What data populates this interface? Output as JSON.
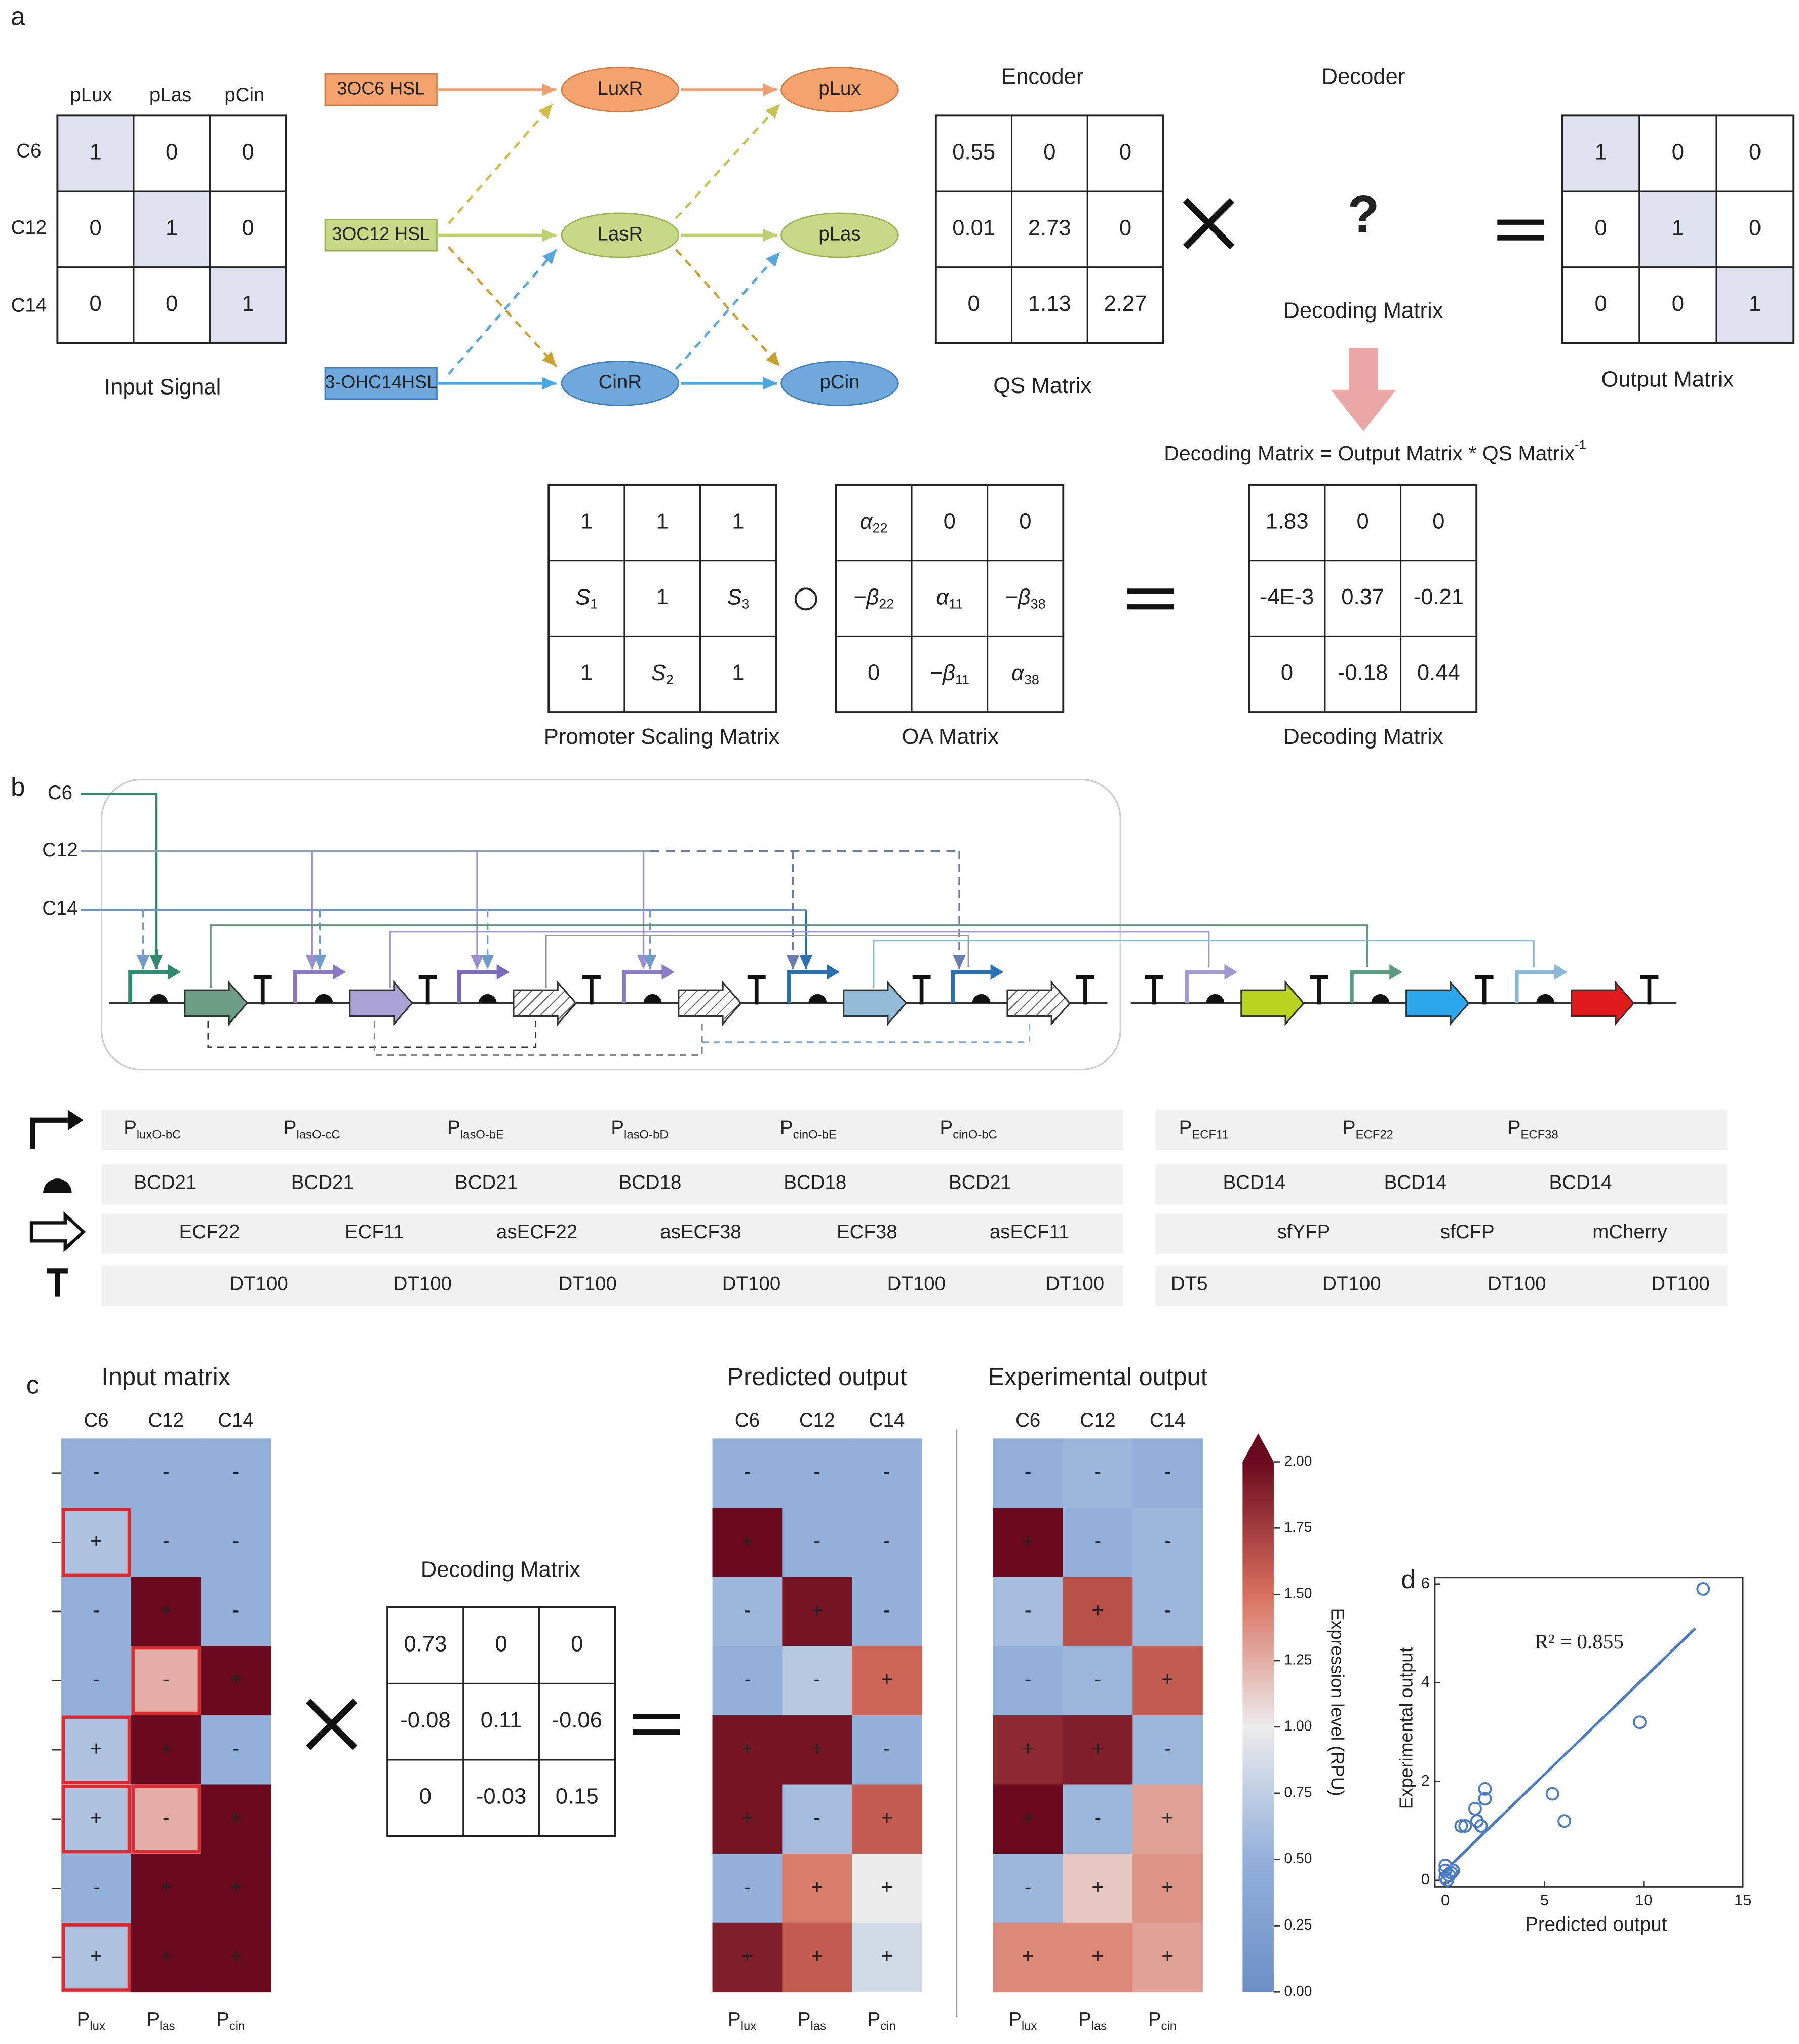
{
  "panel_labels": [
    "a",
    "b",
    "c",
    "d"
  ],
  "panel_a": {
    "input_signal": {
      "col_headers": [
        "pLux",
        "pLas",
        "pCin"
      ],
      "row_headers": [
        "C6",
        "C12",
        "C14"
      ],
      "rows": [
        [
          1,
          0,
          0
        ],
        [
          0,
          1,
          0
        ],
        [
          0,
          0,
          1
        ]
      ],
      "caption": "Input Signal"
    },
    "pathway": {
      "signals": [
        "3OC6 HSL",
        "3OC12 HSL",
        "3-OHC14HSL"
      ],
      "regulators": [
        "LuxR",
        "LasR",
        "CinR"
      ],
      "promoters": [
        "pLux",
        "pLas",
        "pCin"
      ],
      "colors": [
        "#f4a36e",
        "#c7d987",
        "#6ea8dc"
      ]
    },
    "encoder_label": "Encoder",
    "decoder_label": "Decoder",
    "qs_matrix": {
      "rows": [
        [
          0.55,
          0,
          0
        ],
        [
          0.01,
          2.73,
          0
        ],
        [
          0,
          1.13,
          2.27
        ]
      ],
      "caption": "QS Matrix"
    },
    "unknown": "?",
    "unknown_caption": "Decoding Matrix",
    "output_matrix": {
      "rows": [
        [
          1,
          0,
          0
        ],
        [
          0,
          1,
          0
        ],
        [
          0,
          0,
          1
        ]
      ],
      "caption": "Output Matrix"
    },
    "equation": {
      "text": "Decoding Matrix = Output Matrix * QS Matrix",
      "superscript": "-1"
    },
    "scaling_matrix": {
      "rows": [
        [
          1,
          1,
          1
        ],
        [
          {
            "text": "S",
            "sub": "1"
          },
          1,
          {
            "text": "S",
            "sub": "3"
          }
        ],
        [
          1,
          {
            "text": "S",
            "sub": "2"
          },
          1
        ]
      ],
      "caption": "Promoter Scaling Matrix"
    },
    "oa_matrix": {
      "rows": [
        [
          {
            "text": "α",
            "sub": "22"
          },
          0,
          0
        ],
        [
          {
            "text": "−β",
            "sub": "22"
          },
          {
            "text": "α",
            "sub": "11"
          },
          {
            "text": "−β",
            "sub": "38"
          }
        ],
        [
          0,
          {
            "text": "−β",
            "sub": "11"
          },
          {
            "text": "α",
            "sub": "38"
          }
        ]
      ],
      "caption": "OA Matrix"
    },
    "decoding_matrix": {
      "rows": [
        [
          1.83,
          0,
          0
        ],
        [
          "-4E-3",
          0.37,
          -0.21
        ],
        [
          0,
          -0.18,
          0.44
        ]
      ],
      "caption": "Decoding Matrix"
    }
  },
  "panel_b": {
    "inputs": [
      "C6",
      "C12",
      "C14"
    ],
    "left": {
      "promoters": [
        {
          "text": "P",
          "sub": "luxO-bC"
        },
        {
          "text": "P",
          "sub": "lasO-cC"
        },
        {
          "text": "P",
          "sub": "lasO-bE"
        },
        {
          "text": "P",
          "sub": "lasO-bD"
        },
        {
          "text": "P",
          "sub": "cinO-bE"
        },
        {
          "text": "P",
          "sub": "cinO-bC"
        }
      ],
      "rbs": [
        "BCD21",
        "BCD21",
        "BCD21",
        "BCD18",
        "BCD18",
        "BCD21"
      ],
      "cds": [
        "ECF22",
        "ECF11",
        "asECF22",
        "asECF38",
        "ECF38",
        "asECF11"
      ],
      "terminators": [
        "DT100",
        "DT100",
        "DT100",
        "DT100",
        "DT100",
        "DT100"
      ]
    },
    "right": {
      "promoters": [
        {
          "text": "P",
          "sub": "ECF11"
        },
        {
          "text": "P",
          "sub": "ECF22"
        },
        {
          "text": "P",
          "sub": "ECF38"
        }
      ],
      "rbs": [
        "BCD14",
        "BCD14",
        "BCD14"
      ],
      "cds": [
        "sfYFP",
        "sfCFP",
        "mCherry"
      ],
      "terminators": [
        "DT5",
        "DT100",
        "DT100",
        "DT100"
      ]
    }
  },
  "panel_c": {
    "decoding_title": "Decoding Matrix",
    "decoding_rows": [
      [
        0.73,
        0,
        0
      ],
      [
        -0.08,
        0.11,
        -0.06
      ],
      [
        0,
        -0.03,
        0.15
      ]
    ]
  },
  "chart_data": [
    {
      "type": "heatmap",
      "title": "Input matrix",
      "columns": [
        "C6",
        "C12",
        "C14"
      ],
      "column_labels": [
        {
          "text": "P",
          "sub": "lux"
        },
        {
          "text": "P",
          "sub": "las"
        },
        {
          "text": "P",
          "sub": "cin"
        }
      ],
      "cell_labels": [
        [
          "-",
          "-",
          "-"
        ],
        [
          "+",
          "-",
          "-"
        ],
        [
          "-",
          "+",
          "-"
        ],
        [
          "-",
          "-",
          "+"
        ],
        [
          "+",
          "+",
          "-"
        ],
        [
          "+",
          "-",
          "+"
        ],
        [
          "-",
          "+",
          "+"
        ],
        [
          "+",
          "+",
          "+"
        ]
      ],
      "values": [
        [
          0.5,
          0.5,
          0.5
        ],
        [
          0.65,
          0.5,
          0.5
        ],
        [
          0.5,
          2.0,
          0.5
        ],
        [
          0.5,
          1.25,
          2.0
        ],
        [
          0.65,
          2.0,
          0.5
        ],
        [
          0.65,
          1.25,
          2.0
        ],
        [
          0.5,
          2.0,
          2.0
        ],
        [
          0.65,
          2.0,
          2.0
        ]
      ],
      "outlined": [
        [
          false,
          false,
          false
        ],
        [
          true,
          false,
          false
        ],
        [
          false,
          false,
          false
        ],
        [
          false,
          true,
          false
        ],
        [
          true,
          false,
          false
        ],
        [
          true,
          true,
          false
        ],
        [
          false,
          false,
          false
        ],
        [
          true,
          false,
          false
        ]
      ],
      "outline_color": "#e0262c",
      "zlim": [
        0,
        2
      ]
    },
    {
      "type": "heatmap",
      "title": "Predicted output",
      "columns": [
        "C6",
        "C12",
        "C14"
      ],
      "column_labels": [
        {
          "text": "P",
          "sub": "lux"
        },
        {
          "text": "P",
          "sub": "las"
        },
        {
          "text": "P",
          "sub": "cin"
        }
      ],
      "cell_labels": [
        [
          "-",
          "-",
          "-"
        ],
        [
          "+",
          "-",
          "-"
        ],
        [
          "-",
          "+",
          "-"
        ],
        [
          "-",
          "-",
          "+"
        ],
        [
          "+",
          "+",
          "-"
        ],
        [
          "+",
          "-",
          "+"
        ],
        [
          "-",
          "+",
          "+"
        ],
        [
          "+",
          "+",
          "+"
        ]
      ],
      "values": [
        [
          0.5,
          0.5,
          0.5
        ],
        [
          2.0,
          0.5,
          0.5
        ],
        [
          0.55,
          1.95,
          0.5
        ],
        [
          0.5,
          0.7,
          1.55
        ],
        [
          1.95,
          1.95,
          0.5
        ],
        [
          1.95,
          0.6,
          1.6
        ],
        [
          0.5,
          1.45,
          1.0
        ],
        [
          1.9,
          1.6,
          0.85
        ]
      ],
      "zlim": [
        0,
        2
      ]
    },
    {
      "type": "heatmap",
      "title": "Experimental output",
      "columns": [
        "C6",
        "C12",
        "C14"
      ],
      "column_labels": [
        {
          "text": "P",
          "sub": "lux"
        },
        {
          "text": "P",
          "sub": "las"
        },
        {
          "text": "P",
          "sub": "cin"
        }
      ],
      "cell_labels": [
        [
          "-",
          "-",
          "-"
        ],
        [
          "+",
          "-",
          "-"
        ],
        [
          "-",
          "+",
          "-"
        ],
        [
          "-",
          "-",
          "+"
        ],
        [
          "+",
          "+",
          "-"
        ],
        [
          "+",
          "-",
          "+"
        ],
        [
          "-",
          "+",
          "+"
        ],
        [
          "+",
          "+",
          "+"
        ]
      ],
      "values": [
        [
          0.5,
          0.55,
          0.5
        ],
        [
          2.0,
          0.5,
          0.55
        ],
        [
          0.6,
          1.65,
          0.55
        ],
        [
          0.5,
          0.55,
          1.6
        ],
        [
          1.85,
          1.9,
          0.55
        ],
        [
          2.0,
          0.55,
          1.3
        ],
        [
          0.55,
          1.15,
          1.35
        ],
        [
          1.4,
          1.4,
          1.3
        ]
      ],
      "zlim": [
        0,
        2
      ],
      "colorbar": {
        "label": "Expression level (RPU)",
        "lim": [
          0,
          2
        ],
        "ticks": [
          {
            "value": 0,
            "label": "0.00"
          },
          {
            "value": 0.25,
            "label": "0.25"
          },
          {
            "value": 0.5,
            "label": "0.50"
          },
          {
            "value": 0.75,
            "label": "0.75"
          },
          {
            "value": 1,
            "label": "1.00"
          },
          {
            "value": 1.25,
            "label": "1.25"
          },
          {
            "value": 1.5,
            "label": "1.50"
          },
          {
            "value": 1.75,
            "label": "1.75"
          },
          {
            "value": 2,
            "label": "2.00"
          }
        ]
      }
    },
    {
      "type": "scatter",
      "xlabel": "Predicted output",
      "ylabel": "Experimental output",
      "annotation": "R² = 0.855",
      "x": [
        13,
        9.8,
        5.4,
        6,
        2,
        2,
        1.5,
        1.6,
        1.8,
        0.8,
        1.0,
        0,
        0,
        0.2,
        0.4,
        0.1,
        0.3,
        0
      ],
      "y": [
        5.9,
        3.2,
        1.75,
        1.2,
        1.85,
        1.65,
        1.45,
        1.2,
        1.1,
        1.1,
        1.1,
        0.3,
        0.2,
        0.1,
        0.2,
        0,
        0.15,
        0.05
      ],
      "fit": {
        "x": [
          0,
          12.6
        ],
        "y": [
          0.2,
          5.1
        ]
      },
      "color": "#4a7cc4",
      "xlim": [
        0,
        15
      ],
      "ylim": [
        0,
        6
      ],
      "xticks": [
        0,
        5,
        10,
        15
      ],
      "yticks": [
        0,
        2,
        4,
        6
      ]
    }
  ]
}
